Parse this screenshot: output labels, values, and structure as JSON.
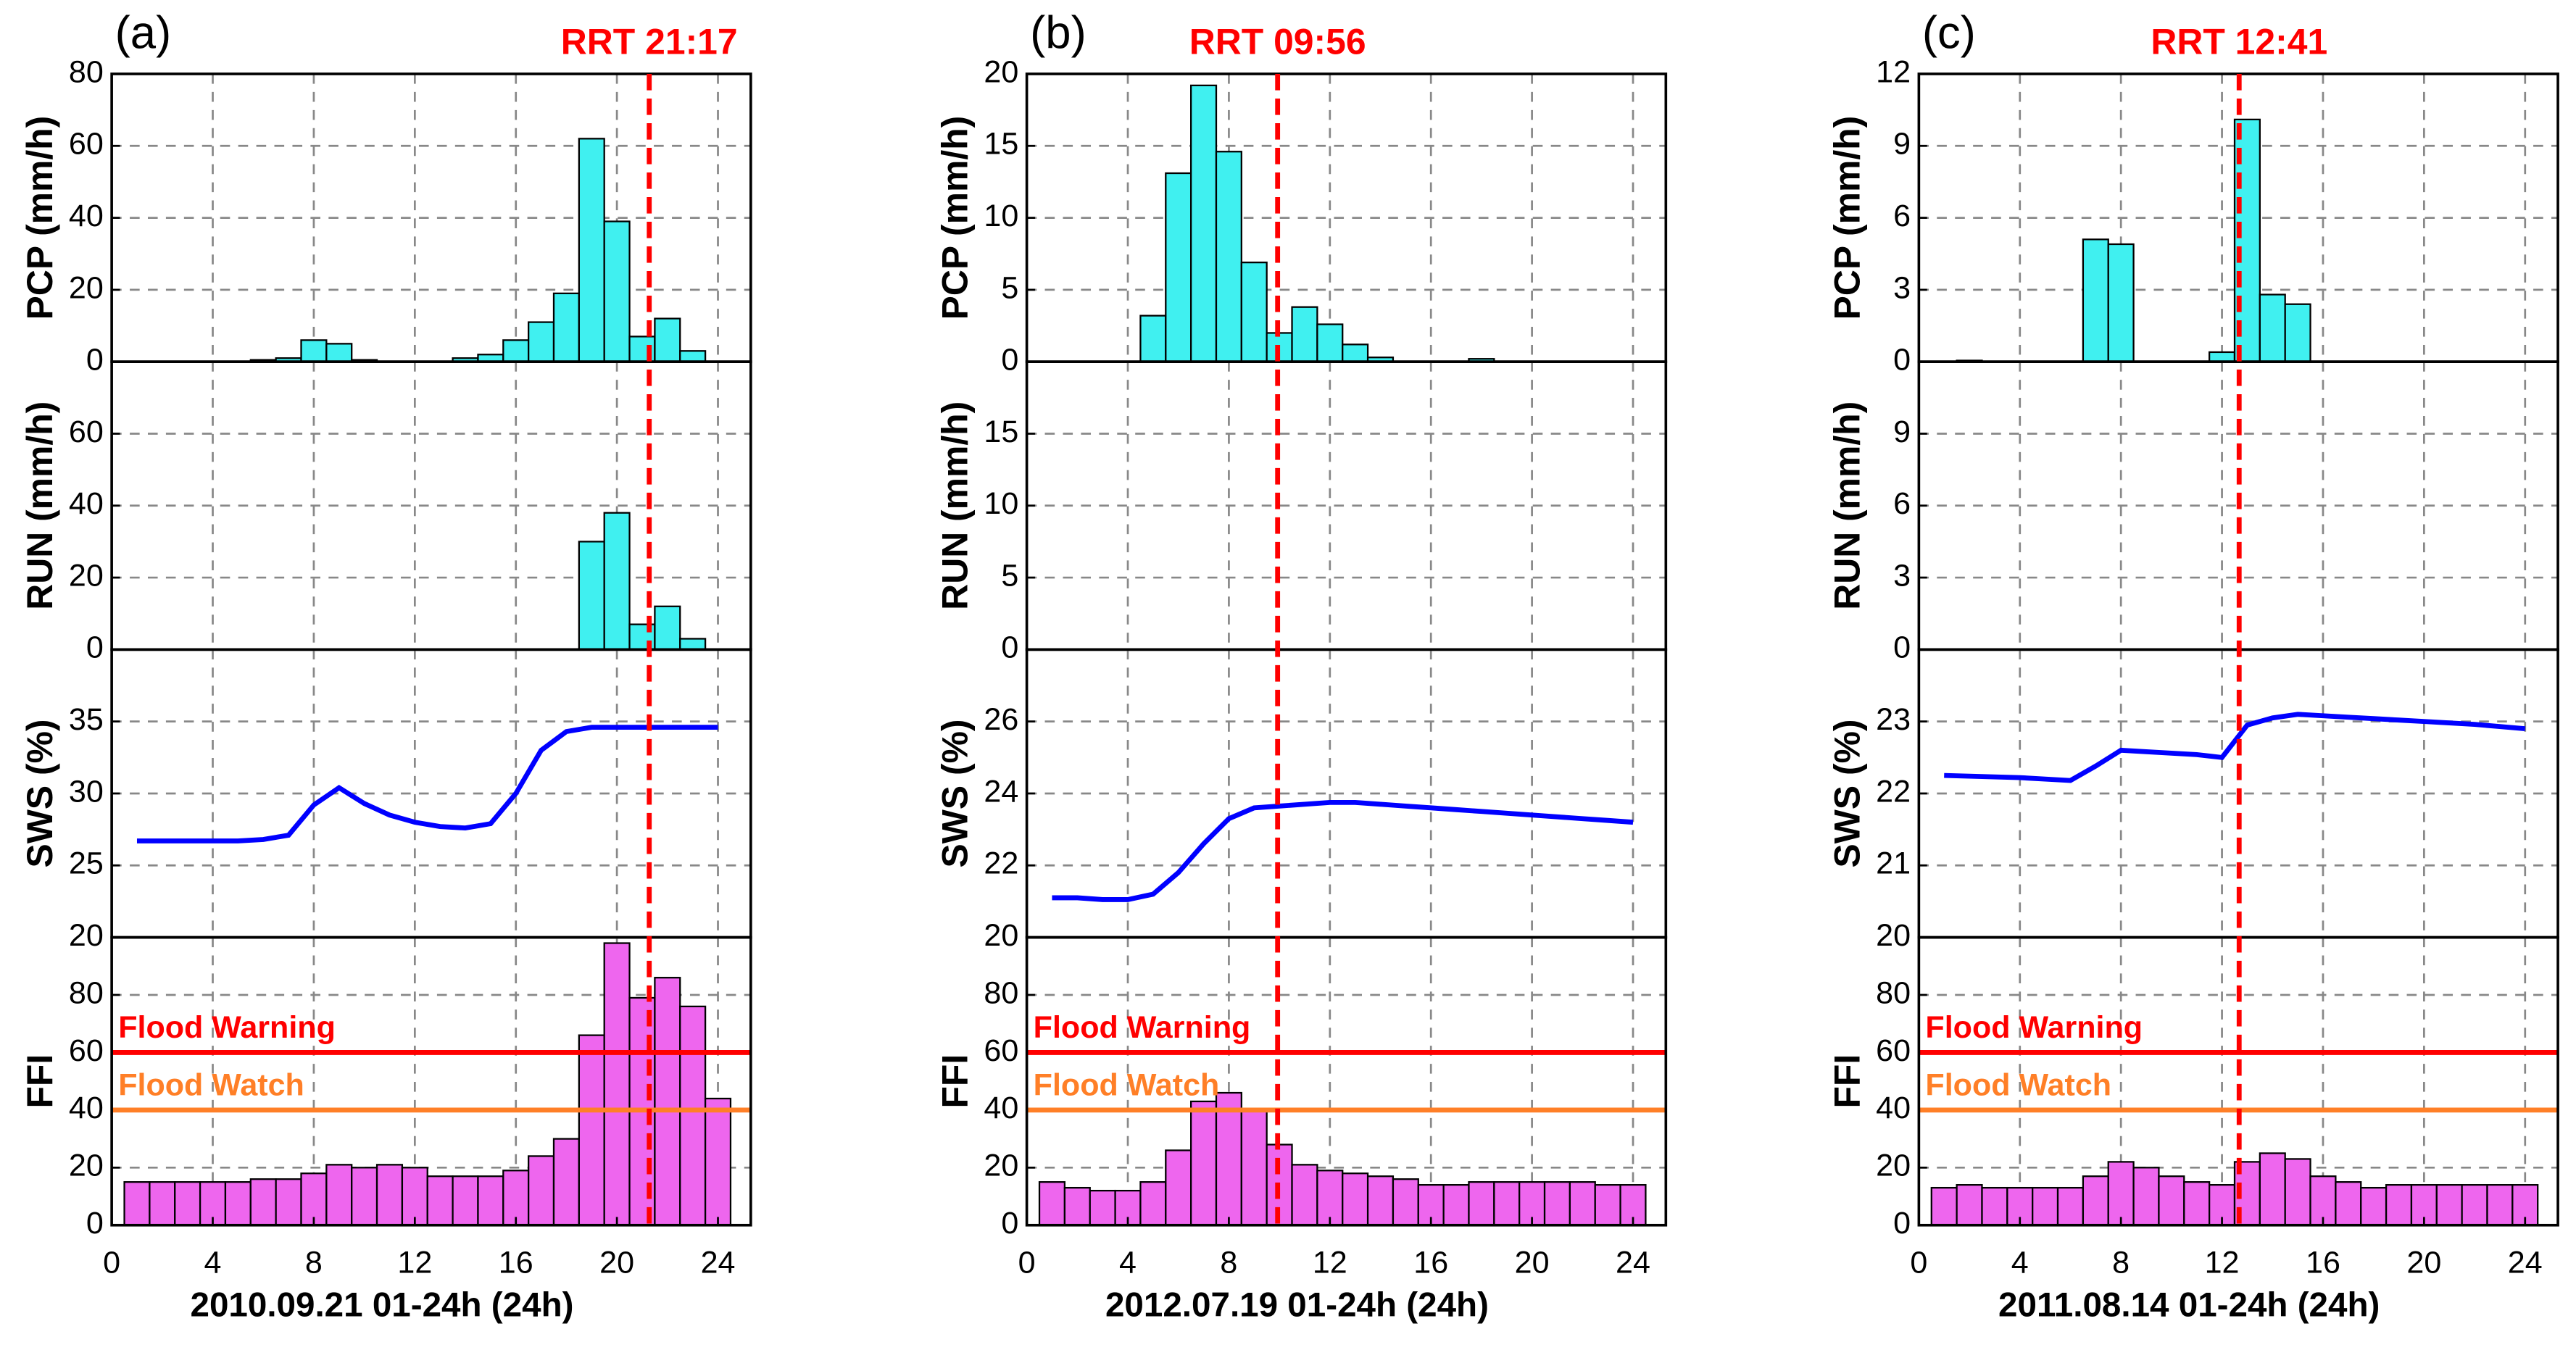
{
  "chart_data": [
    {
      "type": "multi-panel",
      "label": "(a)",
      "annotation": "RRT 21:17",
      "rrt": 21.28,
      "xlabel": "2010.09.21 01-24h (24h)",
      "xlim": [
        0,
        25.3
      ],
      "xticks": [
        0,
        4,
        8,
        12,
        16,
        20,
        24
      ],
      "x": [
        1,
        2,
        3,
        4,
        5,
        6,
        7,
        8,
        9,
        10,
        11,
        12,
        13,
        14,
        15,
        16,
        17,
        18,
        19,
        20,
        21,
        22,
        23,
        24
      ],
      "panels": [
        {
          "type": "bar",
          "ylabel": "PCP (mm/h)",
          "ylim": [
            0,
            80
          ],
          "yticks": [
            0,
            20,
            40,
            60,
            80
          ],
          "color": "#40f0f0",
          "values": [
            0,
            0,
            0,
            0,
            0,
            0.5,
            1,
            6,
            5,
            0.5,
            0,
            0,
            0,
            1,
            2,
            6,
            11,
            19,
            62,
            39,
            7,
            12,
            3,
            0
          ]
        },
        {
          "type": "bar",
          "ylabel": "RUN (mm/h)",
          "ylim": [
            0,
            80
          ],
          "yticks": [
            0,
            20,
            40,
            60
          ],
          "color": "#40f0f0",
          "values": [
            0,
            0,
            0,
            0,
            0,
            0,
            0,
            0,
            0,
            0,
            0,
            0,
            0,
            0,
            0,
            0,
            0,
            0,
            30,
            38,
            7,
            12,
            3,
            0
          ]
        },
        {
          "type": "line",
          "ylabel": "SWS (%)",
          "ylim": [
            20,
            40
          ],
          "yticks": [
            20,
            25,
            30,
            35
          ],
          "color": "#0000ff",
          "values": [
            26.7,
            26.7,
            26.7,
            26.7,
            26.7,
            26.8,
            27.1,
            29.2,
            30.4,
            29.3,
            28.5,
            28.0,
            27.7,
            27.6,
            27.9,
            30.0,
            33.0,
            34.3,
            34.6,
            34.6,
            34.6,
            34.6,
            34.6,
            34.6
          ]
        },
        {
          "type": "bar",
          "ylabel": "FFI",
          "ylim": [
            0,
            100
          ],
          "yticks": [
            0,
            20,
            40,
            60,
            80
          ],
          "color": "#ee66ee",
          "values": [
            15,
            15,
            15,
            15,
            15,
            16,
            16,
            18,
            21,
            20,
            21,
            20,
            17,
            17,
            17,
            19,
            24,
            30,
            66,
            98,
            79,
            86,
            76,
            44
          ],
          "thresholds": [
            {
              "name": "Flood Warning",
              "value": 60,
              "color": "#ff0000"
            },
            {
              "name": "Flood Watch",
              "value": 40,
              "color": "#ff7f27"
            }
          ]
        }
      ]
    },
    {
      "type": "multi-panel",
      "label": "(b)",
      "annotation": "RRT 09:56",
      "rrt": 9.93,
      "xlabel": "2012.07.19 01-24h (24h)",
      "xlim": [
        0,
        25.3
      ],
      "xticks": [
        0,
        4,
        8,
        12,
        16,
        20,
        24
      ],
      "x": [
        1,
        2,
        3,
        4,
        5,
        6,
        7,
        8,
        9,
        10,
        11,
        12,
        13,
        14,
        15,
        16,
        17,
        18,
        19,
        20,
        21,
        22,
        23,
        24
      ],
      "panels": [
        {
          "type": "bar",
          "ylabel": "PCP (mm/h)",
          "ylim": [
            0,
            20
          ],
          "yticks": [
            0,
            5,
            10,
            15,
            20
          ],
          "color": "#40f0f0",
          "values": [
            0,
            0,
            0,
            0,
            3.2,
            13.1,
            19.2,
            14.6,
            6.9,
            2,
            3.8,
            2.6,
            1.2,
            0.3,
            0,
            0,
            0,
            0.2,
            0,
            0,
            0,
            0,
            0,
            0
          ]
        },
        {
          "type": "bar",
          "ylabel": "RUN (mm/h)",
          "ylim": [
            0,
            20
          ],
          "yticks": [
            0,
            5,
            10,
            15
          ],
          "color": "#40f0f0",
          "values": [
            0,
            0,
            0,
            0,
            0,
            0,
            0,
            0,
            0,
            0,
            0,
            0,
            0,
            0,
            0,
            0,
            0,
            0,
            0,
            0,
            0,
            0,
            0,
            0
          ]
        },
        {
          "type": "line",
          "ylabel": "SWS (%)",
          "ylim": [
            20,
            28
          ],
          "yticks": [
            20,
            22,
            24,
            26
          ],
          "color": "#0000ff",
          "values": [
            21.1,
            21.1,
            21.05,
            21.05,
            21.2,
            21.8,
            22.6,
            23.3,
            23.6,
            23.65,
            23.7,
            23.75,
            23.75,
            23.7,
            23.65,
            23.6,
            23.55,
            23.5,
            23.45,
            23.4,
            23.35,
            23.3,
            23.25,
            23.2
          ]
        },
        {
          "type": "bar",
          "ylabel": "FFI",
          "ylim": [
            0,
            100
          ],
          "yticks": [
            0,
            20,
            40,
            60,
            80
          ],
          "color": "#ee66ee",
          "values": [
            15,
            13,
            12,
            12,
            15,
            26,
            43,
            46,
            40,
            28,
            21,
            19,
            18,
            17,
            16,
            14,
            14,
            15,
            15,
            15,
            15,
            15,
            14,
            14
          ],
          "thresholds": [
            {
              "name": "Flood Warning",
              "value": 60,
              "color": "#ff0000"
            },
            {
              "name": "Flood Watch",
              "value": 40,
              "color": "#ff7f27"
            }
          ]
        }
      ]
    },
    {
      "type": "multi-panel",
      "label": "(c)",
      "annotation": "RRT 12:41",
      "rrt": 12.68,
      "xlabel": "2011.08.14 01-24h (24h)",
      "xlim": [
        0,
        25.3
      ],
      "xticks": [
        0,
        4,
        8,
        12,
        16,
        20,
        24
      ],
      "x": [
        1,
        2,
        3,
        4,
        5,
        6,
        7,
        8,
        9,
        10,
        11,
        12,
        13,
        14,
        15,
        16,
        17,
        18,
        19,
        20,
        21,
        22,
        23,
        24
      ],
      "panels": [
        {
          "type": "bar",
          "ylabel": "PCP (mm/h)",
          "ylim": [
            0,
            12
          ],
          "yticks": [
            0,
            3,
            6,
            9,
            12
          ],
          "color": "#40f0f0",
          "values": [
            0,
            0.05,
            0,
            0,
            0,
            0,
            5.1,
            4.9,
            0,
            0,
            0,
            0.4,
            10.1,
            2.8,
            2.4,
            0,
            0,
            0,
            0,
            0,
            0,
            0,
            0,
            0
          ]
        },
        {
          "type": "bar",
          "ylabel": "RUN (mm/h)",
          "ylim": [
            0,
            12
          ],
          "yticks": [
            0,
            3,
            6,
            9
          ],
          "color": "#40f0f0",
          "values": [
            0,
            0,
            0,
            0,
            0,
            0,
            0,
            0,
            0,
            0,
            0,
            0,
            0,
            0,
            0,
            0,
            0,
            0,
            0,
            0,
            0,
            0,
            0,
            0
          ]
        },
        {
          "type": "line",
          "ylabel": "SWS (%)",
          "ylim": [
            20,
            24
          ],
          "yticks": [
            20,
            21,
            22,
            23
          ],
          "color": "#0000ff",
          "values": [
            22.25,
            22.24,
            22.23,
            22.22,
            22.2,
            22.18,
            22.38,
            22.6,
            22.58,
            22.56,
            22.54,
            22.5,
            22.95,
            23.05,
            23.1,
            23.08,
            23.06,
            23.04,
            23.02,
            23.0,
            22.98,
            22.96,
            22.93,
            22.9
          ]
        },
        {
          "type": "bar",
          "ylabel": "FFI",
          "ylim": [
            0,
            100
          ],
          "yticks": [
            0,
            20,
            40,
            60,
            80
          ],
          "color": "#ee66ee",
          "values": [
            13,
            14,
            13,
            13,
            13,
            13,
            17,
            22,
            20,
            17,
            15,
            14,
            22,
            25,
            23,
            17,
            15,
            13,
            14,
            14,
            14,
            14,
            14,
            14
          ],
          "thresholds": [
            {
              "name": "Flood Warning",
              "value": 60,
              "color": "#ff0000"
            },
            {
              "name": "Flood Watch",
              "value": 40,
              "color": "#ff7f27"
            }
          ]
        }
      ]
    }
  ]
}
